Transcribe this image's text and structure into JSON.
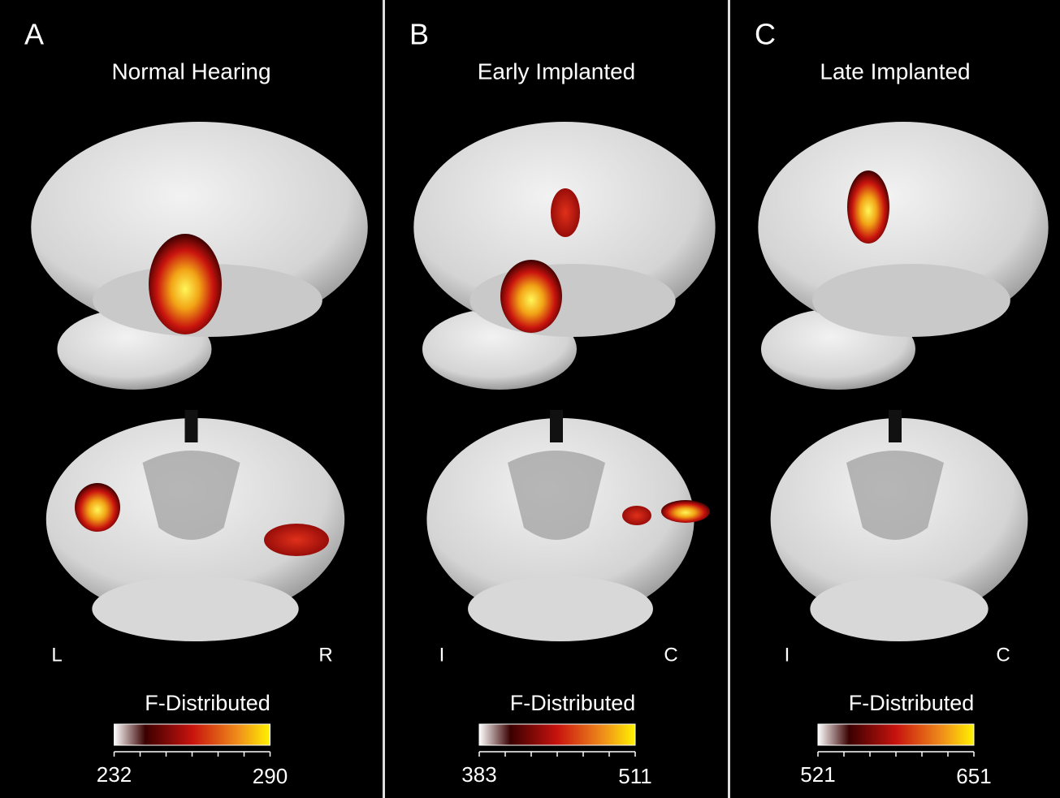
{
  "panels": [
    {
      "letter": "A",
      "title": "Normal Hearing",
      "left_label": "L",
      "right_label": "R",
      "colorbar": {
        "title": "F-Distributed",
        "min": 232,
        "max": 290
      }
    },
    {
      "letter": "B",
      "title": "Early Implanted",
      "left_label": "I",
      "right_label": "C",
      "colorbar": {
        "title": "F-Distributed",
        "min": 383,
        "max": 511
      }
    },
    {
      "letter": "C",
      "title": "Late Implanted",
      "left_label": "I",
      "right_label": "C",
      "colorbar": {
        "title": "F-Distributed",
        "min": 521,
        "max": 651
      }
    }
  ]
}
